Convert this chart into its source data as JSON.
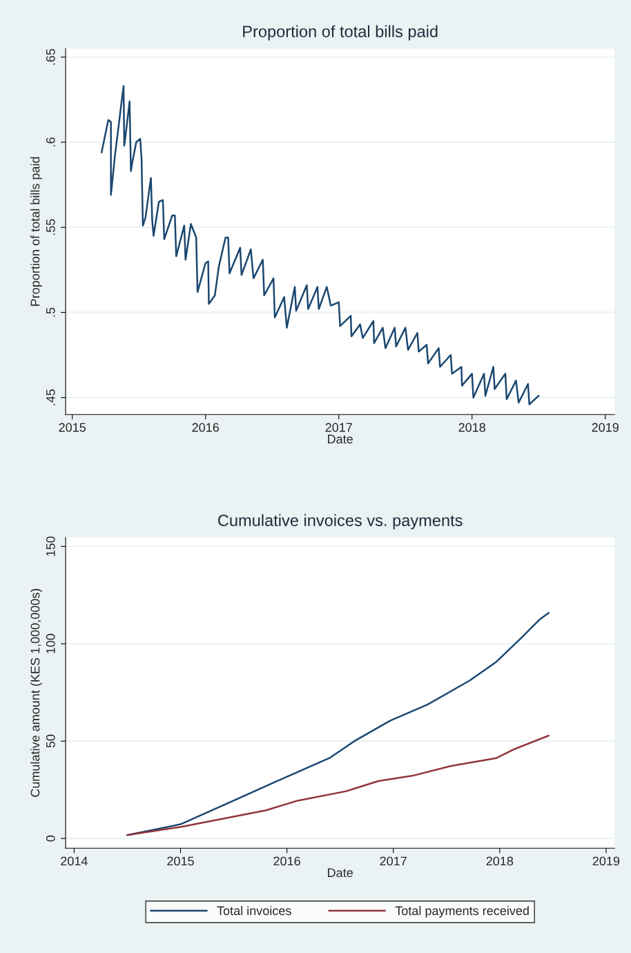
{
  "chart_data": [
    {
      "type": "line",
      "title": "Proportion of total bills paid",
      "xlabel": "Date",
      "ylabel": "Proportion of total bills paid",
      "xlim": [
        2014.95,
        2019.07
      ],
      "xticks": [
        2015,
        2016,
        2017,
        2018,
        2019
      ],
      "ylim": [
        0.44,
        0.655
      ],
      "yticks": [
        {
          "value": 0.45,
          "label": ".45"
        },
        {
          "value": 0.5,
          "label": ".5"
        },
        {
          "value": 0.55,
          "label": ".55"
        },
        {
          "value": 0.6,
          "label": ".6"
        },
        {
          "value": 0.65,
          "label": ".65"
        }
      ],
      "grid": "y",
      "legend": false,
      "series": [
        {
          "color": "#1a476f",
          "x": [
            2015.22,
            2015.27,
            2015.29,
            2015.29,
            2015.32,
            2015.35,
            2015.37,
            2015.385,
            2015.39,
            2015.4,
            2015.43,
            2015.44,
            2015.45,
            2015.48,
            2015.51,
            2015.52,
            2015.53,
            2015.55,
            2015.59,
            2015.6,
            2015.61,
            2015.65,
            2015.68,
            2015.69,
            2015.75,
            2015.77,
            2015.78,
            2015.84,
            2015.85,
            2015.89,
            2015.93,
            2015.94,
            2016.0,
            2016.02,
            2016.025,
            2016.07,
            2016.1,
            2016.15,
            2016.17,
            2016.18,
            2016.26,
            2016.27,
            2016.34,
            2016.36,
            2016.43,
            2016.44,
            2016.51,
            2016.52,
            2016.59,
            2016.61,
            2016.67,
            2016.68,
            2016.76,
            2016.77,
            2016.84,
            2016.85,
            2016.91,
            2016.94,
            2017.0,
            2017.01,
            2017.09,
            2017.095,
            2017.16,
            2017.18,
            2017.26,
            2017.265,
            2017.33,
            2017.35,
            2017.42,
            2017.43,
            2017.5,
            2017.52,
            2017.59,
            2017.6,
            2017.66,
            2017.67,
            2017.75,
            2017.76,
            2017.84,
            2017.85,
            2017.92,
            2017.925,
            2018.0,
            2018.01,
            2018.09,
            2018.1,
            2018.16,
            2018.17,
            2018.25,
            2018.26,
            2018.33,
            2018.35,
            2018.42,
            2018.43,
            2018.5
          ],
          "values": [
            0.594,
            0.613,
            0.612,
            0.569,
            0.592,
            0.611,
            0.624,
            0.633,
            0.598,
            0.604,
            0.624,
            0.583,
            0.588,
            0.6,
            0.602,
            0.59,
            0.551,
            0.556,
            0.579,
            0.554,
            0.545,
            0.565,
            0.566,
            0.543,
            0.557,
            0.557,
            0.533,
            0.551,
            0.531,
            0.552,
            0.544,
            0.512,
            0.529,
            0.53,
            0.505,
            0.51,
            0.527,
            0.544,
            0.544,
            0.523,
            0.538,
            0.522,
            0.537,
            0.52,
            0.531,
            0.51,
            0.52,
            0.497,
            0.509,
            0.491,
            0.515,
            0.501,
            0.516,
            0.502,
            0.515,
            0.502,
            0.515,
            0.504,
            0.506,
            0.492,
            0.498,
            0.486,
            0.493,
            0.485,
            0.495,
            0.482,
            0.491,
            0.479,
            0.491,
            0.48,
            0.491,
            0.478,
            0.488,
            0.477,
            0.481,
            0.47,
            0.479,
            0.468,
            0.475,
            0.464,
            0.468,
            0.457,
            0.464,
            0.45,
            0.464,
            0.451,
            0.468,
            0.455,
            0.464,
            0.449,
            0.46,
            0.447,
            0.458,
            0.446,
            0.451
          ]
        }
      ]
    },
    {
      "type": "line",
      "title": "Cumulative invoices vs. payments",
      "xlabel": "Date",
      "ylabel": "Cumulative amount (KES 1,000,000s)",
      "xlim": [
        2013.92,
        2019.08
      ],
      "xticks": [
        2014,
        2015,
        2016,
        2017,
        2018,
        2019
      ],
      "ylim": [
        -5,
        154.6
      ],
      "yticks": [
        0,
        50,
        100,
        150
      ],
      "grid": "y",
      "legend": "bottom",
      "series": [
        {
          "name": "Total invoices",
          "color": "#1a476f",
          "x": [
            2014.5,
            2015.0,
            2015.48,
            2015.91,
            2016.4,
            2016.64,
            2016.97,
            2017.32,
            2017.72,
            2017.97,
            2018.21,
            2018.37,
            2018.46
          ],
          "values": [
            1.7,
            7.3,
            19,
            29.5,
            41.3,
            50.2,
            60.5,
            68.7,
            81.2,
            90.8,
            103.4,
            112.2,
            115.9
          ]
        },
        {
          "name": "Total payments received",
          "color": "#90353b",
          "x": [
            2014.5,
            2015.0,
            2015.8,
            2016.1,
            2016.56,
            2016.86,
            2017.18,
            2017.54,
            2017.97,
            2018.13,
            2018.46
          ],
          "values": [
            1.7,
            5.9,
            14.4,
            19.4,
            24.3,
            29.5,
            32.2,
            37.2,
            41.3,
            45.7,
            52.8
          ]
        }
      ]
    }
  ]
}
